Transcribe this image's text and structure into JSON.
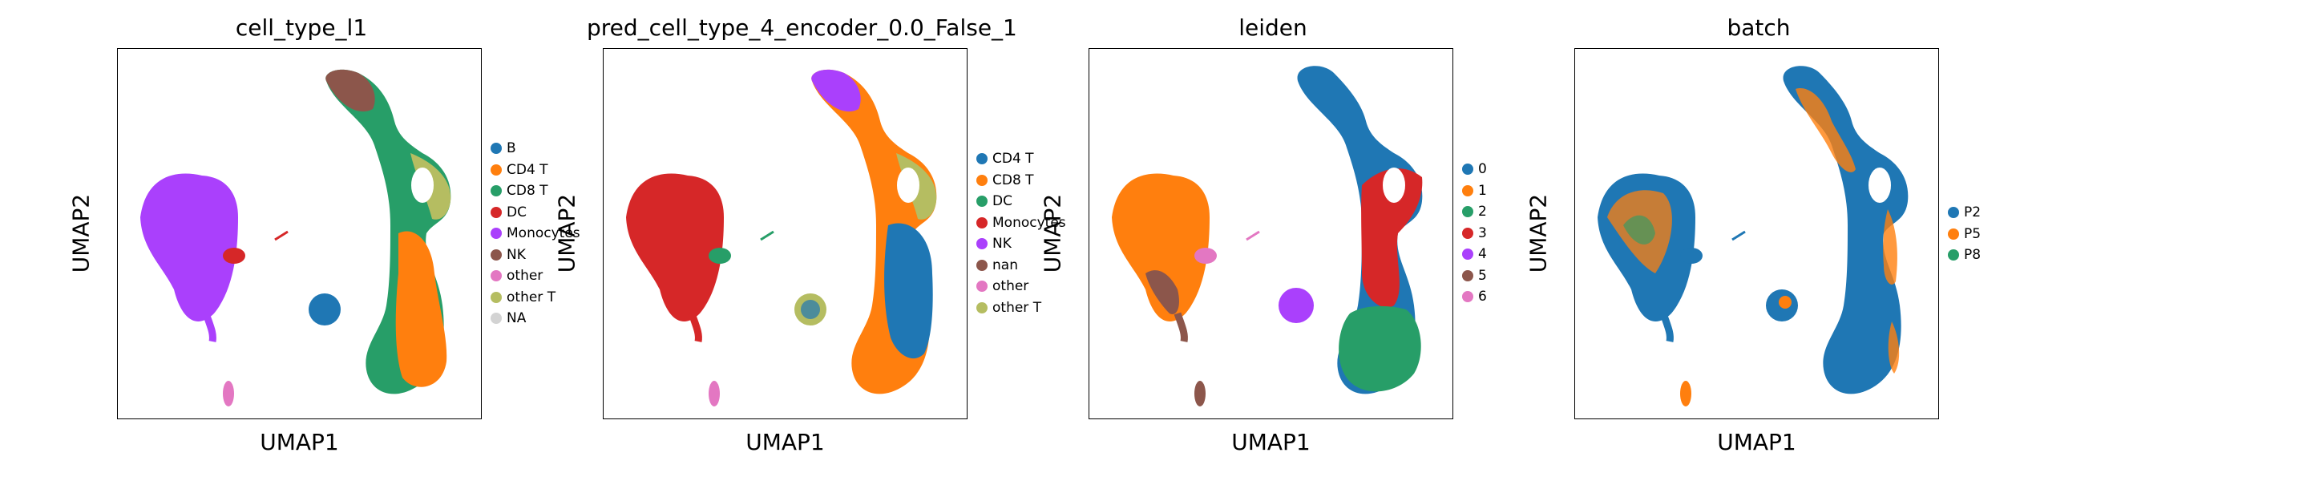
{
  "colors": {
    "blue": "#1f77b4",
    "orange": "#ff7f0e",
    "green": "#279e68",
    "red": "#d62728",
    "purple": "#aa40fc",
    "brown": "#8c564b",
    "pink": "#e377c2",
    "olive": "#b5bd61",
    "lightgray": "#d3d3d3"
  },
  "chart_data": [
    {
      "type": "scatter",
      "title": "cell_type_l1",
      "xlabel": "UMAP1",
      "ylabel": "UMAP2",
      "legend_placement": "right",
      "grid": false,
      "legend": [
        {
          "label": "B",
          "color": "#1f77b4"
        },
        {
          "label": "CD4 T",
          "color": "#ff7f0e"
        },
        {
          "label": "CD8 T",
          "color": "#279e68"
        },
        {
          "label": "DC",
          "color": "#d62728"
        },
        {
          "label": "Monocytes",
          "color": "#aa40fc"
        },
        {
          "label": "NK",
          "color": "#8c564b"
        },
        {
          "label": "other",
          "color": "#e377c2"
        },
        {
          "label": "other T",
          "color": "#b5bd61"
        },
        {
          "label": "NA",
          "color": "#d3d3d3"
        }
      ]
    },
    {
      "type": "scatter",
      "title": "pred_cell_type_4_encoder_0.0_False_1",
      "xlabel": "UMAP1",
      "ylabel": "UMAP2",
      "legend_placement": "right",
      "grid": false,
      "legend": [
        {
          "label": "CD4 T",
          "color": "#1f77b4"
        },
        {
          "label": "CD8 T",
          "color": "#ff7f0e"
        },
        {
          "label": "DC",
          "color": "#279e68"
        },
        {
          "label": "Monocytes",
          "color": "#d62728"
        },
        {
          "label": "NK",
          "color": "#aa40fc"
        },
        {
          "label": "nan",
          "color": "#8c564b"
        },
        {
          "label": "other",
          "color": "#e377c2"
        },
        {
          "label": "other T",
          "color": "#b5bd61"
        }
      ]
    },
    {
      "type": "scatter",
      "title": "leiden",
      "xlabel": "UMAP1",
      "ylabel": "UMAP2",
      "legend_placement": "right",
      "grid": false,
      "legend": [
        {
          "label": "0",
          "color": "#1f77b4"
        },
        {
          "label": "1",
          "color": "#ff7f0e"
        },
        {
          "label": "2",
          "color": "#279e68"
        },
        {
          "label": "3",
          "color": "#d62728"
        },
        {
          "label": "4",
          "color": "#aa40fc"
        },
        {
          "label": "5",
          "color": "#8c564b"
        },
        {
          "label": "6",
          "color": "#e377c2"
        }
      ]
    },
    {
      "type": "scatter",
      "title": "batch",
      "xlabel": "UMAP1",
      "ylabel": "UMAP2",
      "legend_placement": "right",
      "grid": false,
      "legend": [
        {
          "label": "P2",
          "color": "#1f77b4"
        },
        {
          "label": "P5",
          "color": "#ff7f0e"
        },
        {
          "label": "P8",
          "color": "#279e68"
        }
      ]
    }
  ]
}
